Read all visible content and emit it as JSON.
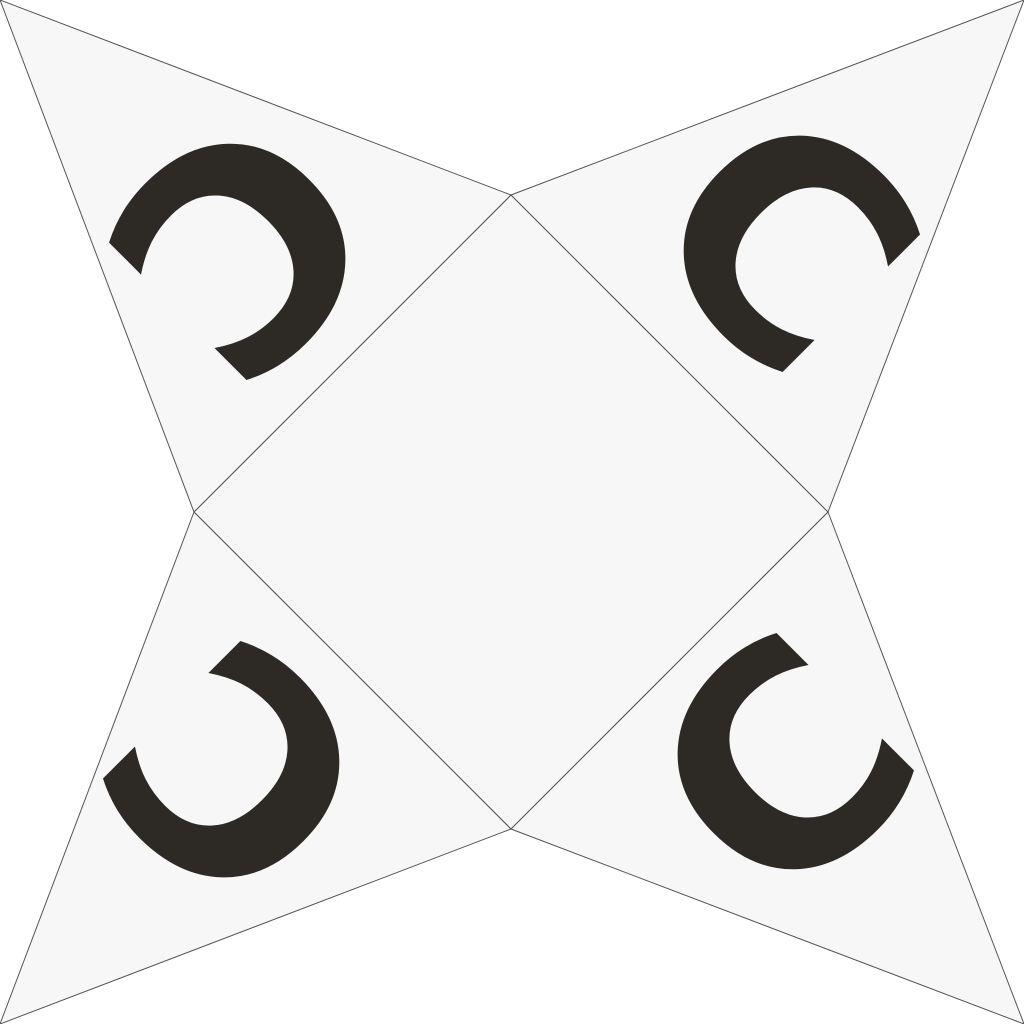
{
  "net": {
    "faces": [
      {
        "name": "center-square",
        "letter": ""
      },
      {
        "name": "top-left-triangle",
        "letter": "C"
      },
      {
        "name": "top-right-triangle",
        "letter": "C"
      },
      {
        "name": "bottom-left-triangle",
        "letter": "C"
      },
      {
        "name": "bottom-right-triangle",
        "letter": "C"
      }
    ],
    "colors": {
      "face_fill": "#f7f7f7",
      "edge": "#555555",
      "glyph": "#2d2a26",
      "background": "#ffffff"
    }
  }
}
